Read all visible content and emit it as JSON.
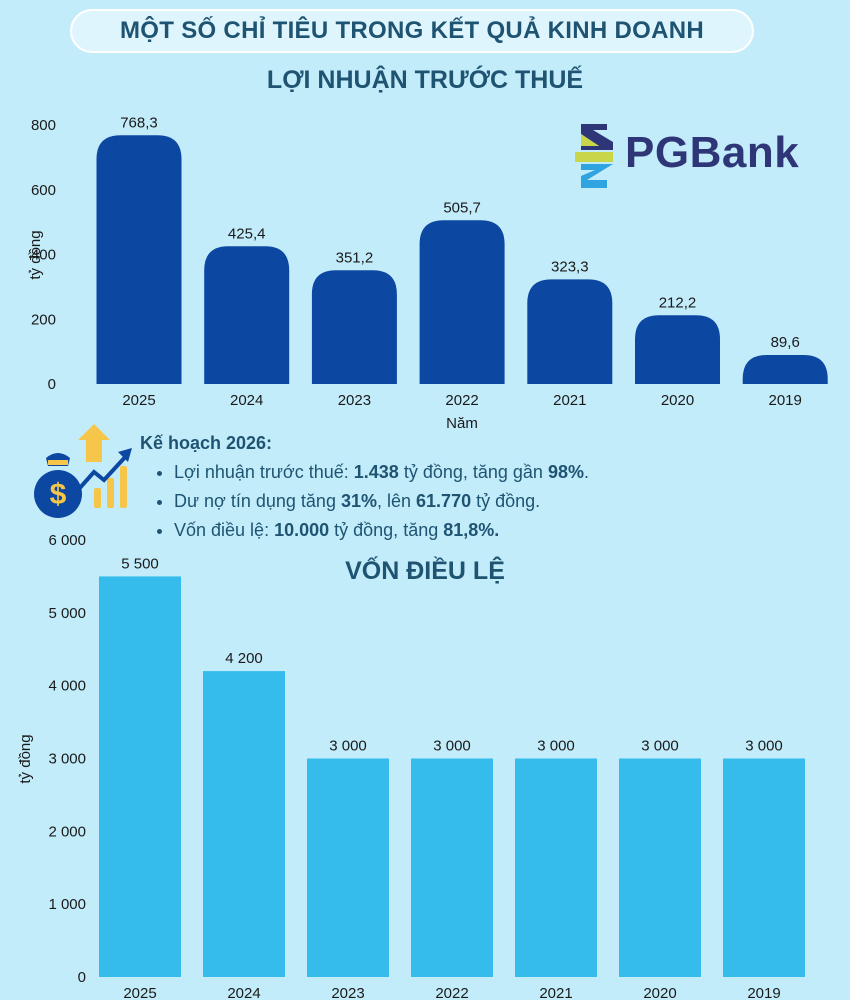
{
  "header": {
    "title": "MỘT SỐ CHỈ TIÊU TRONG KẾT QUẢ KINH DOANH"
  },
  "logo": {
    "text": "PGBank"
  },
  "plan": {
    "heading": "Kế hoạch 2026:",
    "items": [
      {
        "parts": [
          {
            "t": "Lợi nhuận trước thuế: ",
            "b": false
          },
          {
            "t": "1.438",
            "b": true
          },
          {
            "t": " tỷ đồng, tăng gần ",
            "b": false
          },
          {
            "t": "98%",
            "b": true
          },
          {
            "t": ".",
            "b": false
          }
        ]
      },
      {
        "parts": [
          {
            "t": "Dư nợ tín dụng tăng ",
            "b": false
          },
          {
            "t": "31%",
            "b": true
          },
          {
            "t": ", lên ",
            "b": false
          },
          {
            "t": "61.770",
            "b": true
          },
          {
            "t": " tỷ đồng.",
            "b": false
          }
        ]
      },
      {
        "parts": [
          {
            "t": "Vốn điều lệ: ",
            "b": false
          },
          {
            "t": "10.000",
            "b": true
          },
          {
            "t": " tỷ đồng, tăng ",
            "b": false
          },
          {
            "t": "81,8%.",
            "b": true
          }
        ]
      }
    ]
  },
  "colors": {
    "profit_bar": "#0c47a1",
    "capital_bar": "#35bced",
    "title": "#1e5472",
    "background": "#c3ecfb"
  },
  "chart_data": [
    {
      "type": "bar",
      "title": "LỢI NHUẬN TRƯỚC THUẾ",
      "xlabel": "Năm",
      "ylabel": "tỷ đồng",
      "categories": [
        "2025",
        "2024",
        "2023",
        "2022",
        "2021",
        "2020",
        "2019"
      ],
      "values": [
        768.3,
        425.4,
        351.2,
        505.7,
        323.3,
        212.2,
        89.6
      ],
      "value_labels": [
        "768,3",
        "425,4",
        "351,2",
        "505,7",
        "323,3",
        "212,2",
        "89,6"
      ],
      "ylim": [
        0,
        800
      ],
      "yticks": [
        0,
        200,
        400,
        600,
        800
      ],
      "ytick_labels": [
        "0",
        "200",
        "400",
        "600",
        "800"
      ],
      "grid": false
    },
    {
      "type": "bar",
      "title": "VỐN ĐIỀU LỆ",
      "xlabel": "",
      "ylabel": "tỷ đồng",
      "categories": [
        "2025",
        "2024",
        "2023",
        "2022",
        "2021",
        "2020",
        "2019"
      ],
      "values": [
        5500,
        4200,
        3000,
        3000,
        3000,
        3000,
        3000
      ],
      "value_labels": [
        "5 500",
        "4 200",
        "3 000",
        "3 000",
        "3 000",
        "3 000",
        "3 000"
      ],
      "ylim": [
        0,
        6000
      ],
      "yticks": [
        0,
        1000,
        2000,
        3000,
        4000,
        5000,
        6000
      ],
      "ytick_labels": [
        "0",
        "1 000",
        "2 000",
        "3 000",
        "4 000",
        "5 000",
        "6 000"
      ],
      "grid": false
    }
  ]
}
